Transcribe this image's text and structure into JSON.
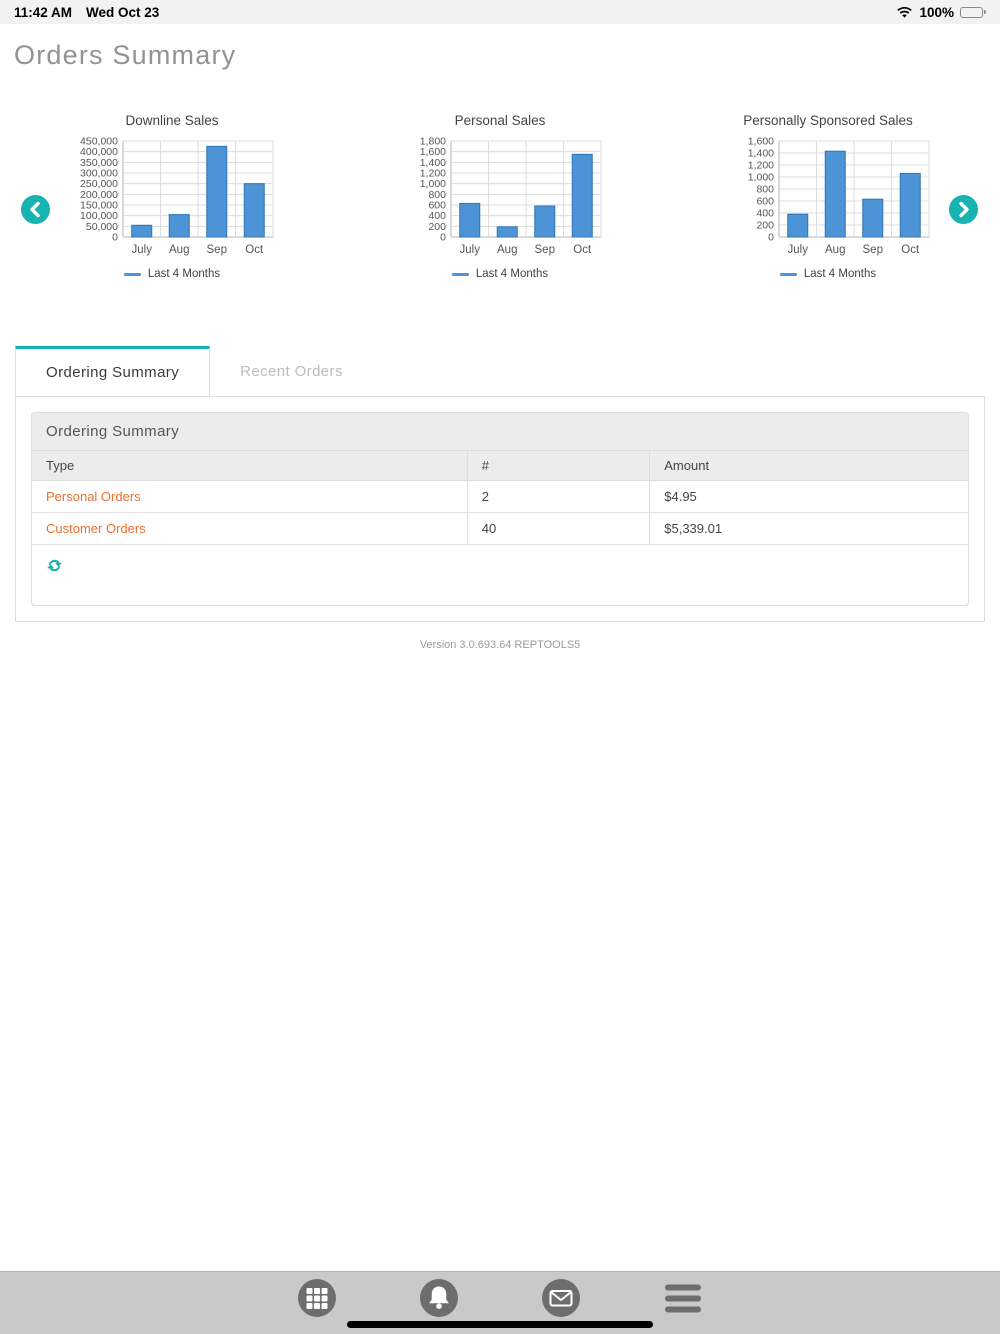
{
  "status_bar": {
    "time": "11:42 AM",
    "date": "Wed Oct 23",
    "battery": "100%"
  },
  "page": {
    "title": "Orders Summary",
    "version": "Version 3.0.693.64 REPTOOLS5"
  },
  "colors": {
    "accent_teal": "#17b3b3",
    "bar_fill": "#4d94d6",
    "bar_stroke": "#2e75b6",
    "link_orange": "#ed6f2d",
    "grid_line": "#dcdcdc",
    "axis_line": "#b7b7b7",
    "axis_text": "#555555"
  },
  "chart_data": [
    {
      "type": "bar",
      "title": "Downline Sales",
      "categories": [
        "July",
        "Aug",
        "Sep",
        "Oct"
      ],
      "values": [
        55000,
        105000,
        425000,
        250000
      ],
      "ylim": [
        0,
        450000
      ],
      "ytick_step": 50000,
      "grid": true,
      "legend": "Last 4 Months",
      "legend_position": "bottom"
    },
    {
      "type": "bar",
      "title": "Personal Sales",
      "categories": [
        "July",
        "Aug",
        "Sep",
        "Oct"
      ],
      "values": [
        630,
        190,
        580,
        1550
      ],
      "ylim": [
        0,
        1800
      ],
      "ytick_step": 200,
      "grid": true,
      "legend": "Last 4 Months",
      "legend_position": "bottom"
    },
    {
      "type": "bar",
      "title": "Personally Sponsored Sales",
      "categories": [
        "July",
        "Aug",
        "Sep",
        "Oct"
      ],
      "values": [
        380,
        1430,
        630,
        1060
      ],
      "ylim": [
        0,
        1600
      ],
      "ytick_step": 200,
      "grid": true,
      "legend": "Last 4 Months",
      "legend_position": "bottom"
    }
  ],
  "tabs": [
    {
      "label": "Ordering Summary",
      "active": true
    },
    {
      "label": "Recent Orders",
      "active": false
    }
  ],
  "panel": {
    "header": "Ordering Summary",
    "table": {
      "columns": [
        "Type",
        "#",
        "Amount"
      ],
      "rows": [
        {
          "type": "Personal Orders",
          "count": "2",
          "amount": "$4.95"
        },
        {
          "type": "Customer Orders",
          "count": "40",
          "amount": "$5,339.01"
        }
      ]
    }
  },
  "bottom_nav": [
    "apps",
    "notifications",
    "messages",
    "menu"
  ]
}
